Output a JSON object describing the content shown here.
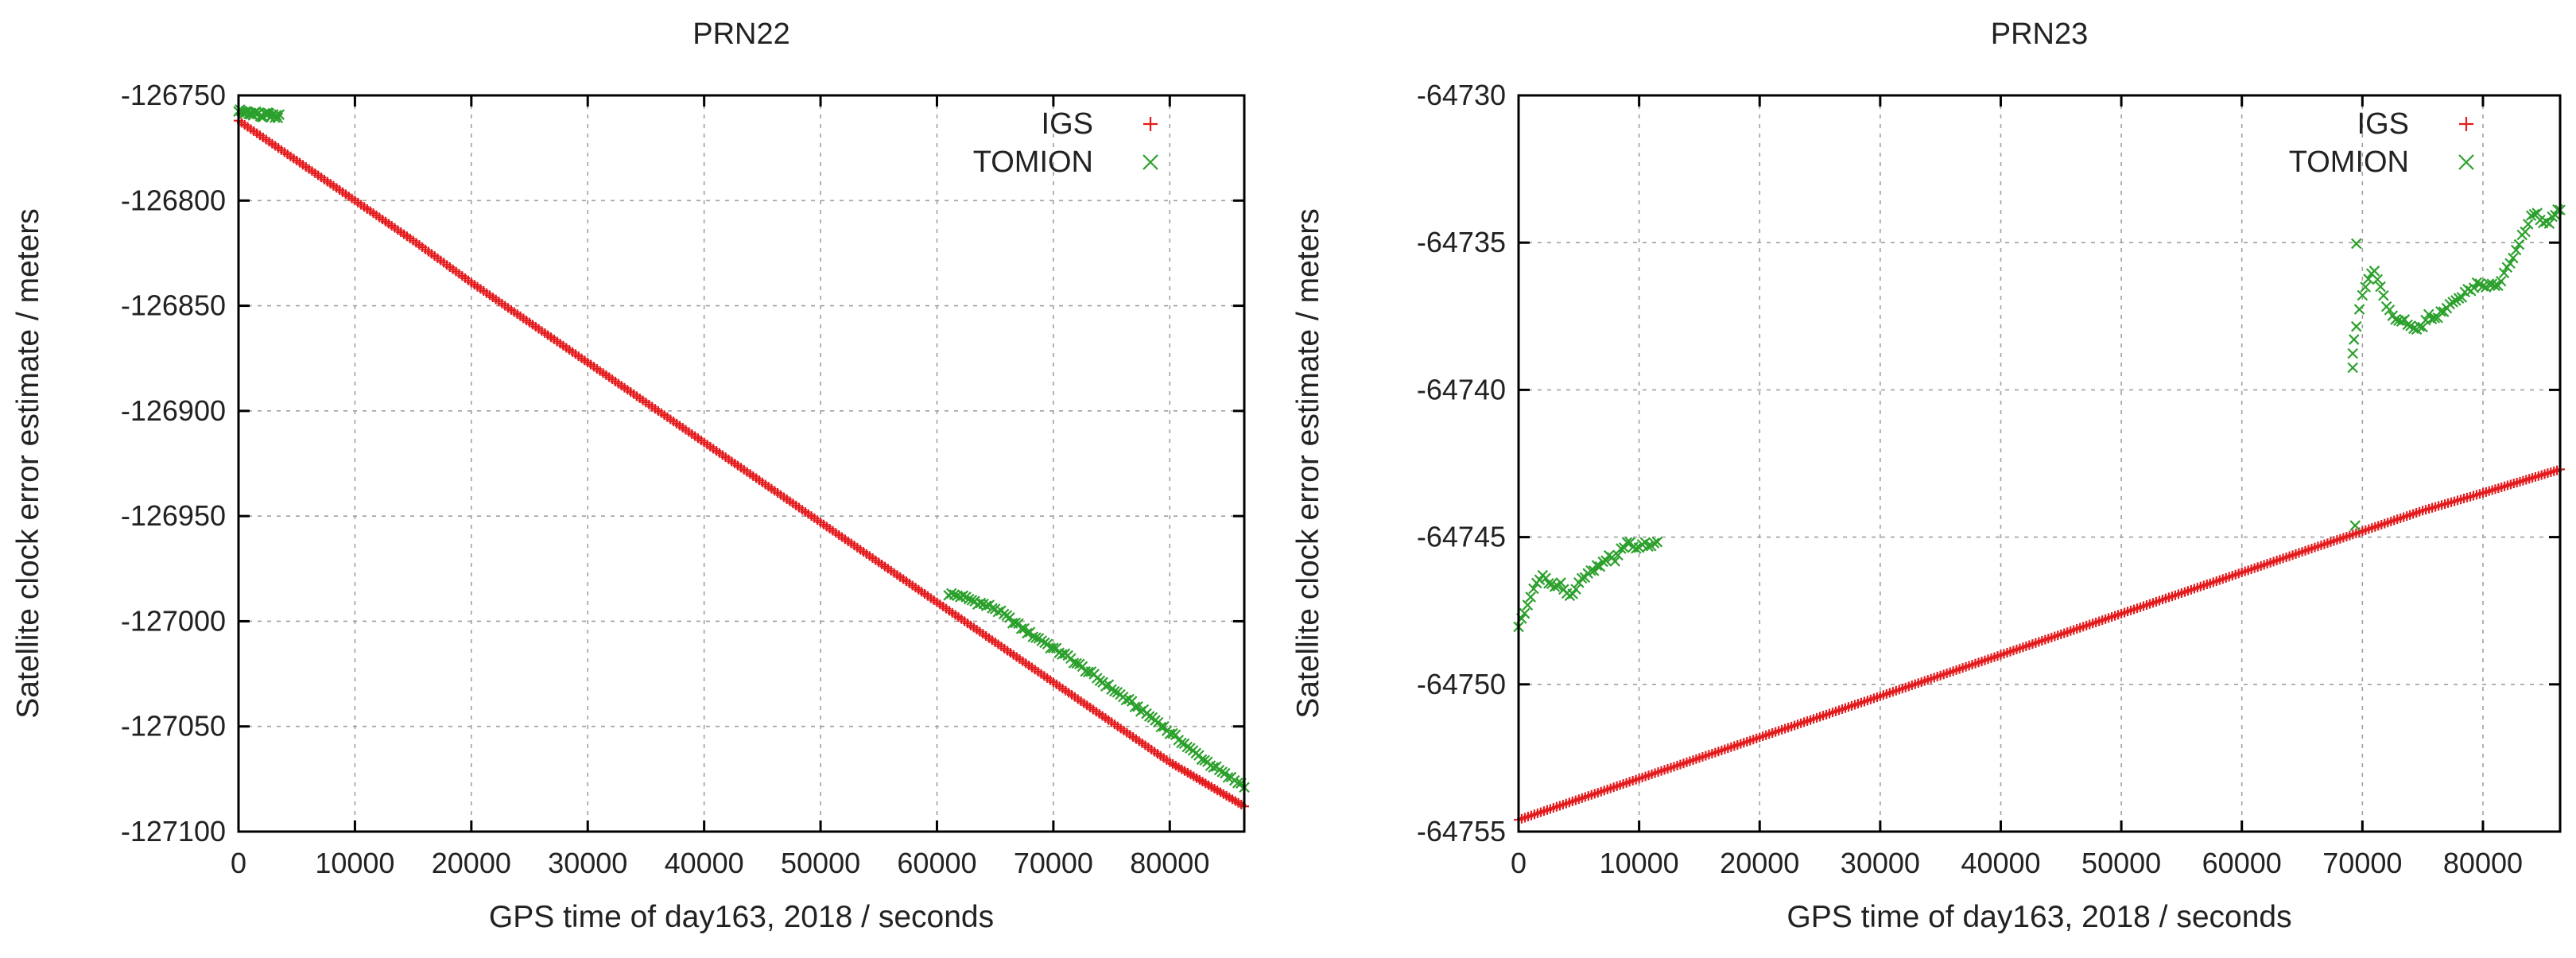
{
  "chart_data": [
    {
      "type": "scatter",
      "title": "PRN22",
      "xlabel": "GPS time of day163, 2018 / seconds",
      "ylabel": "Satellite clock error estimate / meters",
      "xlim": [
        0,
        86400
      ],
      "ylim": [
        -127100,
        -126750
      ],
      "xticks": [
        0,
        10000,
        20000,
        30000,
        40000,
        50000,
        60000,
        70000,
        80000
      ],
      "xtick_labels": [
        "0",
        "10000",
        "20000",
        "30000",
        "40000",
        "50000",
        "60000",
        "70000",
        "80000"
      ],
      "yticks": [
        -126750,
        -126800,
        -126850,
        -126900,
        -126950,
        -127000,
        -127050,
        -127100
      ],
      "ytick_labels": [
        "-126750",
        "-126800",
        "-126850",
        "-126900",
        "-126950",
        "-127000",
        "-127050",
        "-127100"
      ],
      "grid": true,
      "legend_position": "top-right",
      "series": [
        {
          "name": "IGS",
          "marker": "+",
          "color": "#e41a1c",
          "x": [
            0,
            5000,
            10000,
            15000,
            20000,
            25000,
            30000,
            35000,
            40000,
            45000,
            50000,
            55000,
            60000,
            65000,
            70000,
            75000,
            80000,
            86400
          ],
          "y": [
            -126762,
            -126781,
            -126800,
            -126819,
            -126839,
            -126858,
            -126877,
            -126896,
            -126915,
            -126934,
            -126953,
            -126972,
            -126991,
            -127010,
            -127029,
            -127048,
            -127067,
            -127088
          ]
        },
        {
          "name": "TOMION",
          "marker": "x",
          "color": "#2ca02c",
          "segments": [
            {
              "x": [
                0,
                500,
                1000,
                1500,
                2000,
                2500,
                3000,
                3500
              ],
              "y": [
                -126757,
                -126758,
                -126759,
                -126758,
                -126760,
                -126759,
                -126760,
                -126760
              ]
            },
            {
              "x": [
                61000,
                62000,
                63000,
                64000,
                65000,
                66000,
                67000,
                68000,
                69000,
                70000,
                71000,
                72000,
                73000,
                74000,
                75000,
                76000,
                77000,
                78000,
                79000,
                80000,
                81000,
                82000,
                83000,
                84000,
                85000,
                86400
              ],
              "y": [
                -126987,
                -126988,
                -126990,
                -126992,
                -126994,
                -126998,
                -127002,
                -127006,
                -127009,
                -127013,
                -127016,
                -127020,
                -127024,
                -127028,
                -127032,
                -127036,
                -127040,
                -127044,
                -127048,
                -127053,
                -127057,
                -127062,
                -127066,
                -127070,
                -127074,
                -127078
              ]
            }
          ]
        }
      ]
    },
    {
      "type": "scatter",
      "title": "PRN23",
      "xlabel": "GPS time of day163, 2018 / seconds",
      "ylabel": "Satellite clock error estimate / meters",
      "xlim": [
        0,
        86400
      ],
      "ylim": [
        -64755,
        -64730
      ],
      "xticks": [
        0,
        10000,
        20000,
        30000,
        40000,
        50000,
        60000,
        70000,
        80000
      ],
      "xtick_labels": [
        "0",
        "10000",
        "20000",
        "30000",
        "40000",
        "50000",
        "60000",
        "70000",
        "80000"
      ],
      "yticks": [
        -64730,
        -64735,
        -64740,
        -64745,
        -64750,
        -64755
      ],
      "ytick_labels": [
        "-64730",
        "-64735",
        "-64740",
        "-64745",
        "-64750",
        "-64755"
      ],
      "grid": true,
      "legend_position": "top-right",
      "series": [
        {
          "name": "IGS",
          "marker": "+",
          "color": "#e41a1c",
          "x": [
            0,
            5000,
            10000,
            15000,
            20000,
            25000,
            30000,
            35000,
            40000,
            45000,
            50000,
            55000,
            60000,
            65000,
            70000,
            75000,
            80000,
            86400
          ],
          "y": [
            -64754.6,
            -64753.9,
            -64753.2,
            -64752.5,
            -64751.8,
            -64751.1,
            -64750.4,
            -64749.7,
            -64749.0,
            -64748.3,
            -64747.6,
            -64746.9,
            -64746.2,
            -64745.5,
            -64744.8,
            -64744.1,
            -64743.5,
            -64742.7
          ]
        },
        {
          "name": "TOMION",
          "marker": "x",
          "color": "#2ca02c",
          "segments": [
            {
              "x": [
                0,
                500,
                1000,
                1500,
                2000,
                2500,
                3000,
                3500,
                4000,
                4500,
                5000,
                5500,
                6000,
                6500,
                7000,
                7500,
                8000,
                8500,
                9000,
                9500,
                10000,
                10500,
                11000,
                11500
              ],
              "y": [
                -64748.0,
                -64747.6,
                -64747.0,
                -64746.6,
                -64746.3,
                -64746.5,
                -64746.7,
                -64746.6,
                -64746.9,
                -64747.0,
                -64746.6,
                -64746.3,
                -64746.2,
                -64746.0,
                -64745.9,
                -64745.6,
                -64745.8,
                -64745.4,
                -64745.2,
                -64745.3,
                -64745.4,
                -64745.2,
                -64745.3,
                -64745.2
              ]
            },
            {
              "x": [
                69200,
                69200,
                69300,
                69400,
                69500
              ],
              "y": [
                -64739.2,
                -64738.8,
                -64738.3,
                -64744.6,
                -64735.0
              ]
            },
            {
              "x": [
                69500,
                70000,
                70500,
                71000,
                71500,
                72000,
                72500,
                73000,
                73500,
                74000,
                74500,
                75000,
                75500,
                76000,
                76500,
                77000,
                77500,
                78000,
                78500,
                79000,
                79500,
                80000,
                80500,
                81000,
                81500,
                82000,
                82500,
                83000,
                83500,
                84000,
                84500,
                85000,
                85500,
                86000,
                86400
              ],
              "y": [
                -64737.8,
                -64736.8,
                -64736.2,
                -64736.0,
                -64736.5,
                -64737.1,
                -64737.5,
                -64737.7,
                -64737.6,
                -64737.9,
                -64738.0,
                -64737.8,
                -64737.5,
                -64737.6,
                -64737.4,
                -64737.2,
                -64737.0,
                -64736.9,
                -64736.7,
                -64736.6,
                -64736.4,
                -64736.5,
                -64736.4,
                -64736.5,
                -64736.3,
                -64735.9,
                -64735.5,
                -64735.0,
                -64734.6,
                -64734.1,
                -64734.0,
                -64734.4,
                -64734.3,
                -64734.0,
                -64733.9
              ]
            }
          ]
        }
      ]
    }
  ]
}
